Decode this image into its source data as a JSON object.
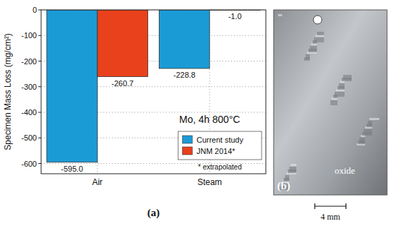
{
  "chart_data": {
    "type": "bar",
    "title": "Mo, 4h 800°C",
    "y_label": "Specimen Mass Loss (mg/cm²)",
    "categories": [
      "Air",
      "Steam"
    ],
    "series": [
      {
        "name": "Current study",
        "color": "#1b9bd6",
        "values": [
          -595.0,
          -228.8
        ],
        "value_labels": [
          "-595.0",
          "-228.8"
        ]
      },
      {
        "name": "JNM 2014*",
        "color": "#e8411c",
        "values": [
          -260.7,
          -1.0
        ],
        "value_labels": [
          "-260.7",
          "-1.0"
        ]
      }
    ],
    "ylim": [
      -640,
      0
    ],
    "yticks": [
      -600,
      -500,
      -400,
      -300,
      -200,
      -100,
      0
    ],
    "grid": true,
    "legend": "lower right",
    "data_labels": true,
    "annotations": [
      "* extrapolated"
    ],
    "panel_label": "(a)"
  },
  "photo": {
    "label": "(b)",
    "annotation": "oxide",
    "scale_bar": "4 mm"
  }
}
